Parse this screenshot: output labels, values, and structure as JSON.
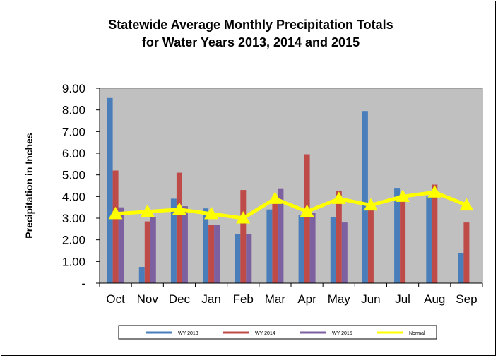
{
  "colors": {
    "plot_bg": "#c0c0c0",
    "wy2013": "#4a7ebb",
    "wy2014": "#be4b48",
    "wy2015": "#7d60a0",
    "normal": "#ffff00"
  },
  "chart_data": {
    "type": "bar",
    "title_lines": [
      "Statewide Average Monthly Precipitation Totals",
      "for Water Years 2013, 2014 and 2015"
    ],
    "xlabel": "",
    "ylabel": "Precipitation in Inches",
    "ylim": [
      0,
      9
    ],
    "yticks": [
      0,
      1,
      2,
      3,
      4,
      5,
      6,
      7,
      8,
      9
    ],
    "ytick_labels": [
      "-",
      "1.00",
      "2.00",
      "3.00",
      "4.00",
      "5.00",
      "6.00",
      "7.00",
      "8.00",
      "9.00"
    ],
    "categories": [
      "Oct",
      "Nov",
      "Dec",
      "Jan",
      "Feb",
      "Mar",
      "Apr",
      "May",
      "Jun",
      "Jul",
      "Aug",
      "Sep"
    ],
    "grid": false,
    "legend_position": "bottom",
    "series": [
      {
        "name": "WY 2013",
        "type": "bar",
        "color_key": "wy2013",
        "values": [
          8.55,
          0.75,
          3.9,
          3.45,
          2.25,
          3.4,
          3.15,
          3.05,
          7.95,
          4.4,
          4.0,
          1.4
        ]
      },
      {
        "name": "WY 2014",
        "type": "bar",
        "color_key": "wy2014",
        "values": [
          5.2,
          2.85,
          5.1,
          2.7,
          4.3,
          3.85,
          5.95,
          4.25,
          3.45,
          3.95,
          4.55,
          2.8
        ]
      },
      {
        "name": "WY 2015",
        "type": "bar",
        "color_key": "wy2015",
        "values": [
          3.5,
          3.05,
          3.55,
          2.7,
          2.25,
          4.38,
          3.25,
          2.8,
          null,
          null,
          null,
          null
        ]
      },
      {
        "name": "Normal",
        "type": "line",
        "color_key": "normal",
        "values": [
          3.2,
          3.3,
          3.4,
          3.2,
          3.0,
          3.9,
          3.3,
          3.9,
          3.6,
          4.0,
          4.2,
          3.6
        ]
      }
    ]
  }
}
